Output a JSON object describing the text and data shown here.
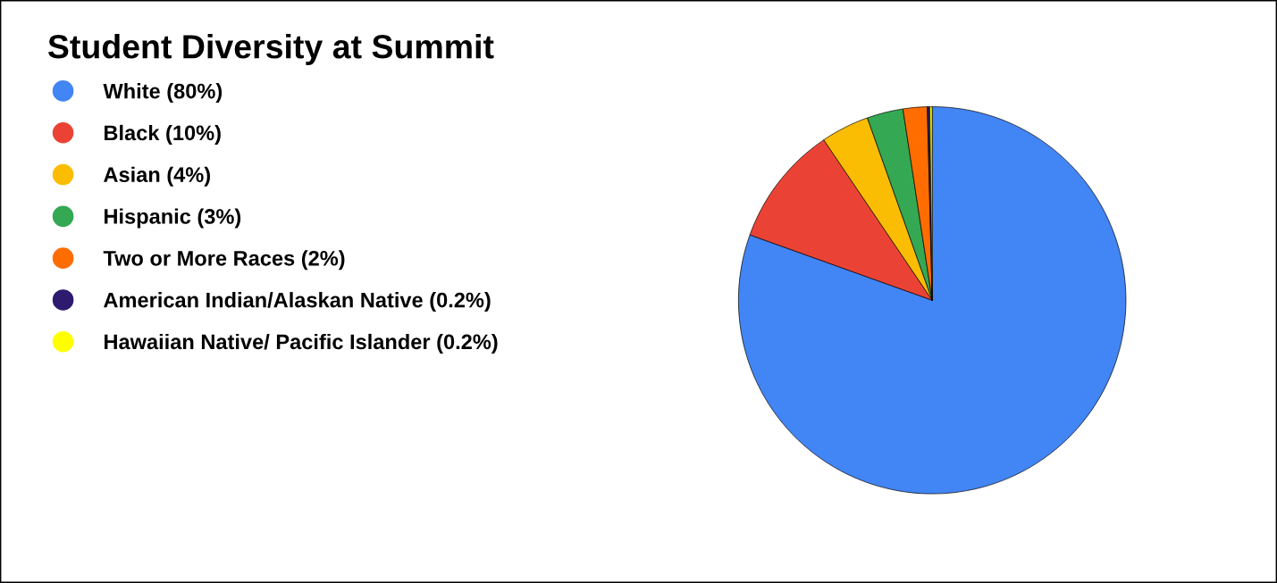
{
  "chart_data": {
    "type": "pie",
    "title": "Student Diversity at Summit",
    "categories": [
      "White (80%)",
      "Black (10%)",
      "Asian (4%)",
      "Hispanic (3%)",
      "Two or More Races (2%)",
      "American Indian/Alaskan Native (0.2%)",
      "Hawaiian Native/ Pacific Islander (0.2%)"
    ],
    "values": [
      80,
      10,
      4,
      3,
      2,
      0.2,
      0.2
    ],
    "colors": [
      "#4285f4",
      "#ea4335",
      "#fbbc04",
      "#34a853",
      "#ff6d01",
      "#2e1a6e",
      "#ffff00"
    ],
    "legend": "top left"
  }
}
